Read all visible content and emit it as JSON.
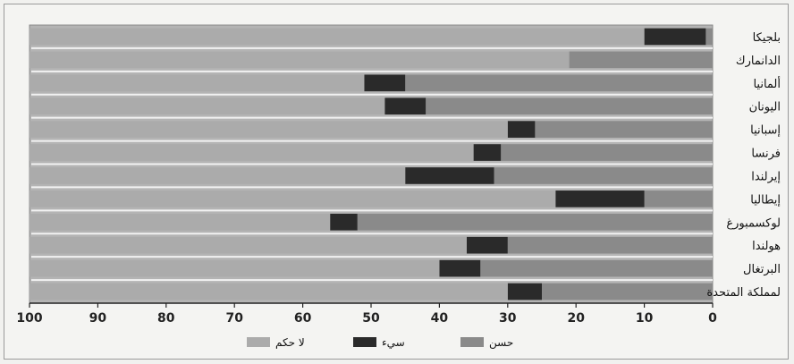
{
  "chart_data": {
    "type": "bar",
    "orientation": "horizontal",
    "stacked": true,
    "x_axis_reversed": true,
    "xlim": [
      100,
      0
    ],
    "x_ticks": [
      "100",
      "90",
      "80",
      "70",
      "60",
      "50",
      "40",
      "30",
      "20",
      "10",
      "0"
    ],
    "title": "",
    "xlabel": "",
    "ylabel": "",
    "grid": false,
    "legend_position": "bottom",
    "categories": [
      "بلجيكا",
      "الدانمارك",
      "ألمانيا",
      "اليونان",
      "إسبانيا",
      "فرنسا",
      "إيرلندا",
      "إيطاليا",
      "لوكسمبورغ",
      "هولندا",
      "البرتغال",
      "لمملكة المتحدة"
    ],
    "series": [
      {
        "name": "حسن",
        "color": "#8a8a8a",
        "values": [
          1,
          21,
          45,
          42,
          26,
          31,
          32,
          10,
          52,
          30,
          34,
          25
        ]
      },
      {
        "name": "سيء",
        "color": "#2a2a2a",
        "values": [
          9,
          0,
          6,
          6,
          4,
          4,
          13,
          13,
          4,
          6,
          6,
          5
        ]
      },
      {
        "name": "لا حكم",
        "color": "#ababab",
        "values": [
          90,
          79,
          49,
          52,
          70,
          65,
          55,
          77,
          44,
          64,
          60,
          70
        ]
      }
    ]
  }
}
